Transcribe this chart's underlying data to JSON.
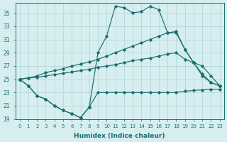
{
  "xlabel": "Humidex (Indice chaleur)",
  "bg_color": "#d6eef0",
  "grid_color": "#b8d8dc",
  "line_color": "#1a6e6e",
  "xlim": [
    -0.5,
    23.5
  ],
  "ylim": [
    19,
    36
  ],
  "yticks": [
    19,
    21,
    23,
    25,
    27,
    29,
    31,
    33,
    35
  ],
  "xticks": [
    0,
    1,
    2,
    3,
    4,
    5,
    6,
    7,
    8,
    9,
    10,
    11,
    12,
    13,
    14,
    15,
    16,
    17,
    18,
    19,
    20,
    21,
    22,
    23
  ],
  "series_wavy": {
    "x": [
      0,
      1,
      2,
      3,
      4,
      5,
      6,
      7,
      8,
      9,
      10,
      11,
      12,
      13,
      14,
      15,
      16,
      17,
      18,
      19,
      20,
      21,
      22,
      23
    ],
    "y": [
      25.0,
      24.0,
      22.5,
      22.0,
      21.0,
      20.3,
      19.8,
      19.2,
      20.8,
      23.0,
      23.0,
      23.0,
      23.0,
      23.0,
      23.0,
      23.0,
      23.0,
      23.0,
      23.0,
      23.2,
      23.3,
      23.4,
      23.5,
      23.5
    ]
  },
  "series_peak": {
    "x": [
      0,
      1,
      2,
      3,
      4,
      5,
      6,
      7,
      8,
      9,
      10,
      11,
      12,
      13,
      14,
      15,
      16,
      17,
      18,
      19,
      20,
      21,
      22,
      23
    ],
    "y": [
      25.0,
      24.0,
      22.5,
      22.0,
      21.0,
      20.3,
      19.8,
      19.2,
      20.8,
      29.0,
      31.5,
      36.0,
      35.8,
      35.0,
      35.2,
      36.0,
      35.5,
      32.0,
      32.0,
      29.5,
      27.5,
      25.8,
      24.5,
      24.0
    ]
  },
  "series_high": {
    "x": [
      0,
      1,
      2,
      3,
      4,
      5,
      6,
      7,
      8,
      9,
      10,
      11,
      12,
      13,
      14,
      15,
      16,
      17,
      18,
      19,
      20,
      21,
      22,
      23
    ],
    "y": [
      25.0,
      25.2,
      25.5,
      26.0,
      26.3,
      26.6,
      27.0,
      27.3,
      27.6,
      28.0,
      28.5,
      29.0,
      29.5,
      30.0,
      30.5,
      31.0,
      31.5,
      32.0,
      32.2,
      29.5,
      27.5,
      25.5,
      24.5,
      24.0
    ]
  },
  "series_mid": {
    "x": [
      0,
      1,
      2,
      3,
      4,
      5,
      6,
      7,
      8,
      9,
      10,
      11,
      12,
      13,
      14,
      15,
      16,
      17,
      18,
      19,
      20,
      21,
      22,
      23
    ],
    "y": [
      25.0,
      25.2,
      25.3,
      25.5,
      25.7,
      25.9,
      26.1,
      26.3,
      26.5,
      26.8,
      27.0,
      27.2,
      27.5,
      27.8,
      28.0,
      28.2,
      28.5,
      28.8,
      29.0,
      28.0,
      27.5,
      27.0,
      25.5,
      24.0
    ]
  }
}
